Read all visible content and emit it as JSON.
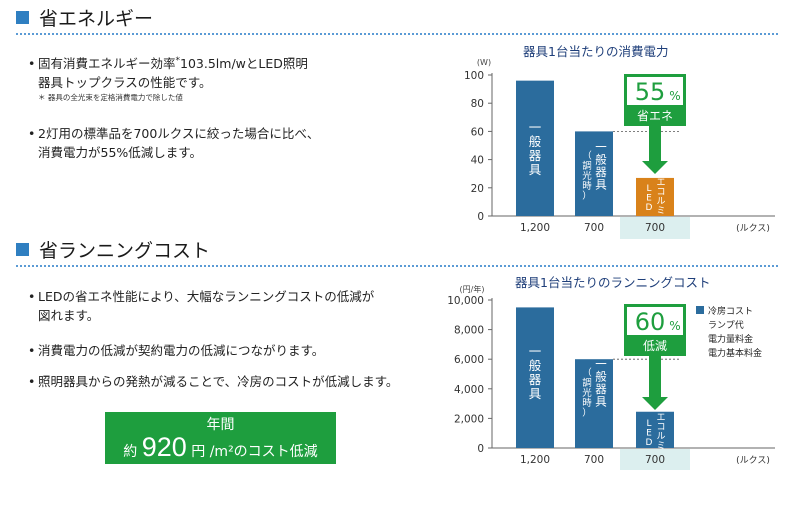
{
  "section1": {
    "title": "省エネルギー",
    "bullet1_line1": "固有消費エネルギー効率",
    "bullet1_star": "*",
    "bullet1_line1b": "103.5lm/wとLED照明",
    "bullet1_line2": "器具トップクラスの性能です。",
    "bullet1_note": "＊ 器具の全光束を定格消費電力で除した値",
    "bullet2_line1": "2灯用の標準品を700ルクスに絞った場合に比べ、",
    "bullet2_line2": "消費電力が55%低減します。"
  },
  "section2": {
    "title": "省ランニングコスト",
    "bullet1_line1": "LEDの省エネ性能により、大幅なランニングコストの低減が",
    "bullet1_line2": "図れます。",
    "bullet2": "消費電力の低減が契約電力の低減につながります。",
    "bullet3": "照明器具からの発熱が減ることで、冷房のコストが低減します。",
    "cost_box": {
      "line1": "年間",
      "prefix": "約",
      "amount": "920",
      "unit": "円 /m²のコスト低減"
    }
  },
  "colors": {
    "accent_blue": "#2f7fc1",
    "bar_blue": "#2b6c9d",
    "bar_orange": "#d9821a",
    "green": "#1e9e3e",
    "highlight": "#dcefef"
  },
  "chart_data": [
    {
      "type": "bar",
      "title": "器具1台当たりの消費電力",
      "ylabel": "(W)",
      "xlabel": "(ルクス)",
      "ylim": [
        0,
        100
      ],
      "yticks": [
        "0",
        "20",
        "40",
        "60",
        "80",
        "100"
      ],
      "categories": [
        "1,200",
        "700",
        "700"
      ],
      "values": [
        96,
        60,
        27
      ],
      "bar_labels": [
        "一般器具",
        "一般器具（調光時）",
        "エコルミLED"
      ],
      "bar_colors": [
        "#2b6c9d",
        "#2b6c9d",
        "#d9821a"
      ],
      "callout_value": "55",
      "callout_unit": "%",
      "callout_label": "省エネ"
    },
    {
      "type": "bar",
      "title": "器具1台当たりのランニングコスト",
      "ylabel": "(円/年)",
      "xlabel": "(ルクス)",
      "ylim": [
        0,
        10000
      ],
      "yticks": [
        "0",
        "2,000",
        "4,000",
        "6,000",
        "8,000",
        "10,000"
      ],
      "categories": [
        "1,200",
        "700",
        "700"
      ],
      "values": [
        9500,
        6000,
        2450
      ],
      "bar_labels": [
        "一般器具",
        "一般器具（調光時）",
        "エコルミLED"
      ],
      "bar_colors": [
        "#2b6c9d",
        "#2b6c9d",
        "#2b6c9d"
      ],
      "callout_value": "60",
      "callout_unit": "%",
      "callout_label": "低減",
      "legend": [
        "冷房コスト",
        "ランプ代",
        "電力量料金",
        "電力基本料金"
      ]
    }
  ]
}
